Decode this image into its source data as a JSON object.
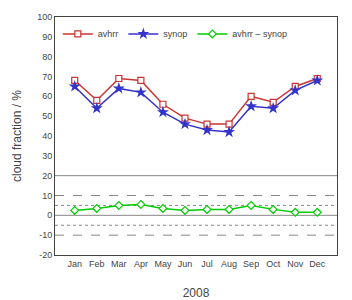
{
  "chart_data": {
    "type": "line",
    "categories": [
      "Jan",
      "Feb",
      "Mar",
      "Apr",
      "May",
      "Jun",
      "Jul",
      "Aug",
      "Sep",
      "Oct",
      "Nov",
      "Dec"
    ],
    "series": [
      {
        "name": "avhrr",
        "color": "#cc3333",
        "marker": "square",
        "line_style": "solid",
        "values": [
          68,
          58,
          69,
          68,
          56,
          49,
          46,
          46,
          60,
          57,
          65,
          69
        ]
      },
      {
        "name": "synop",
        "color": "#3333cc",
        "marker": "star",
        "line_style": "solid",
        "values": [
          65,
          54,
          64,
          62,
          52,
          46,
          43,
          42,
          55,
          54,
          63,
          68
        ]
      },
      {
        "name": "avhrr – synop",
        "color": "#00cc00",
        "marker": "diamond",
        "line_style": "solid",
        "values": [
          2.5,
          3.5,
          5.0,
          5.5,
          3.5,
          2.5,
          3.0,
          3.0,
          5.0,
          3.0,
          1.5,
          1.5
        ]
      }
    ],
    "hlines": [
      {
        "value": 20,
        "line_style": "solid",
        "color": "#888888"
      },
      {
        "value": 0,
        "line_style": "solid",
        "color": "#888888"
      },
      {
        "value": 10,
        "line_style": "dashed",
        "color": "#888888"
      },
      {
        "value": -10,
        "line_style": "dashed",
        "color": "#888888"
      },
      {
        "value": 5,
        "line_style": "dotted",
        "color": "#888888"
      },
      {
        "value": -5,
        "line_style": "dotted",
        "color": "#888888"
      }
    ],
    "xlabel": "2008",
    "ylabel": "cloud fraction / %",
    "ylim": [
      -20,
      100
    ],
    "yticks": [
      -20,
      -10,
      0,
      10,
      20,
      30,
      40,
      50,
      60,
      70,
      80,
      90,
      100
    ],
    "grid": false,
    "legend": "upper left"
  }
}
